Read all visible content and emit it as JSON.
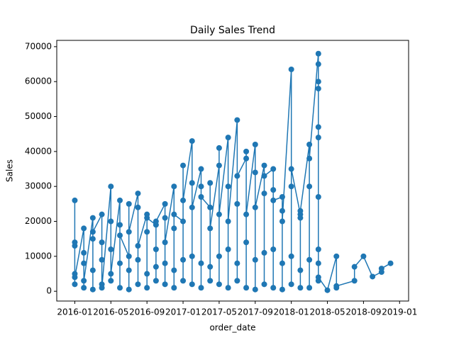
{
  "chart_data": {
    "type": "line",
    "title": "Daily Sales Trend",
    "x_label": "order_date",
    "y_label": "Sales",
    "x": [
      "2016-01",
      "2016-01",
      "2016-01",
      "2016-01",
      "2016-01",
      "2016-01",
      "2016-02",
      "2016-02",
      "2016-02",
      "2016-02",
      "2016-02",
      "2016-03",
      "2016-03",
      "2016-03",
      "2016-03",
      "2016-03",
      "2016-04",
      "2016-04",
      "2016-04",
      "2016-04",
      "2016-04",
      "2016-05",
      "2016-05",
      "2016-05",
      "2016-05",
      "2016-05",
      "2016-06",
      "2016-06",
      "2016-06",
      "2016-06",
      "2016-06",
      "2016-07",
      "2016-07",
      "2016-07",
      "2016-07",
      "2016-07",
      "2016-08",
      "2016-08",
      "2016-08",
      "2016-08",
      "2016-08",
      "2016-09",
      "2016-09",
      "2016-09",
      "2016-09",
      "2016-09",
      "2016-10",
      "2016-10",
      "2016-10",
      "2016-10",
      "2016-10",
      "2016-11",
      "2016-11",
      "2016-11",
      "2016-11",
      "2016-11",
      "2016-12",
      "2016-12",
      "2016-12",
      "2016-12",
      "2016-12",
      "2017-01",
      "2017-01",
      "2017-01",
      "2017-01",
      "2017-01",
      "2017-02",
      "2017-02",
      "2017-02",
      "2017-02",
      "2017-02",
      "2017-03",
      "2017-03",
      "2017-03",
      "2017-03",
      "2017-03",
      "2017-04",
      "2017-04",
      "2017-04",
      "2017-04",
      "2017-04",
      "2017-05",
      "2017-05",
      "2017-05",
      "2017-05",
      "2017-05",
      "2017-06",
      "2017-06",
      "2017-06",
      "2017-06",
      "2017-06",
      "2017-07",
      "2017-07",
      "2017-07",
      "2017-07",
      "2017-07",
      "2017-08",
      "2017-08",
      "2017-08",
      "2017-08",
      "2017-08",
      "2017-09",
      "2017-09",
      "2017-09",
      "2017-09",
      "2017-09",
      "2017-10",
      "2017-10",
      "2017-10",
      "2017-10",
      "2017-10",
      "2017-11",
      "2017-11",
      "2017-11",
      "2017-11",
      "2017-11",
      "2017-12",
      "2017-12",
      "2017-12",
      "2017-12",
      "2017-12",
      "2018-01",
      "2018-01",
      "2018-01",
      "2018-01",
      "2018-01",
      "2018-02",
      "2018-02",
      "2018-02",
      "2018-02",
      "2018-02",
      "2018-03",
      "2018-03",
      "2018-03",
      "2018-03",
      "2018-03",
      "2018-04",
      "2018-04",
      "2018-04",
      "2018-04",
      "2018-04",
      "2018-04",
      "2018-04",
      "2018-04",
      "2018-04",
      "2018-04",
      "2018-04",
      "2018-05",
      "2018-06",
      "2018-06",
      "2018-06",
      "2018-08",
      "2018-08",
      "2018-09",
      "2018-10",
      "2018-11",
      "2018-11",
      "2018-12"
    ],
    "series": [
      {
        "name": "Sales",
        "color": "#1f77b4",
        "values": [
          13000,
          2000,
          26000,
          5000,
          14000,
          4000,
          18000,
          1000,
          8000,
          11000,
          3000,
          21000,
          500,
          15000,
          6000,
          17000,
          22000,
          2000,
          9000,
          14000,
          1000,
          30000,
          3000,
          12000,
          20000,
          5000,
          26000,
          1000,
          19000,
          8000,
          16000,
          10000,
          500,
          25000,
          6000,
          17000,
          28000,
          2000,
          24000,
          9000,
          13000,
          22000,
          1000,
          17000,
          5000,
          21000,
          19000,
          3000,
          12000,
          7000,
          20000,
          25000,
          2000,
          21000,
          8000,
          14000,
          30000,
          1000,
          18000,
          6000,
          22000,
          20000,
          3000,
          36000,
          9000,
          26000,
          43000,
          2000,
          31000,
          10000,
          24000,
          35000,
          1000,
          30000,
          8000,
          27000,
          24000,
          3000,
          31000,
          7000,
          18000,
          36000,
          2000,
          41000,
          10000,
          22000,
          44000,
          1000,
          30000,
          12000,
          20000,
          49000,
          3000,
          25000,
          8000,
          33000,
          38000,
          1000,
          40000,
          14000,
          22000,
          42000,
          500,
          34000,
          9000,
          24000,
          36000,
          2000,
          28000,
          11000,
          33000,
          35000,
          1000,
          29000,
          12000,
          26000,
          27000,
          500,
          23000,
          8000,
          20000,
          63500,
          2000,
          30000,
          10000,
          35000,
          22000,
          1000,
          21000,
          6000,
          23000,
          42000,
          1000,
          30000,
          9000,
          38000,
          68000,
          3000,
          58000,
          12000,
          65000,
          44000,
          47000,
          60000,
          27000,
          8000,
          4000,
          300,
          10000,
          1000,
          1500,
          3000,
          7000,
          10000,
          4200,
          5500,
          6500,
          8000
        ]
      }
    ],
    "xlim": [
      "2015-11",
      "2019-02"
    ],
    "xticks": [
      "2016-01",
      "2016-05",
      "2016-09",
      "2017-01",
      "2017-05",
      "2017-09",
      "2018-01",
      "2018-05",
      "2018-09",
      "2019-01"
    ],
    "ylim": [
      -2800,
      71800
    ],
    "yticks": [
      0,
      10000,
      20000,
      30000,
      40000,
      50000,
      60000,
      70000
    ]
  }
}
